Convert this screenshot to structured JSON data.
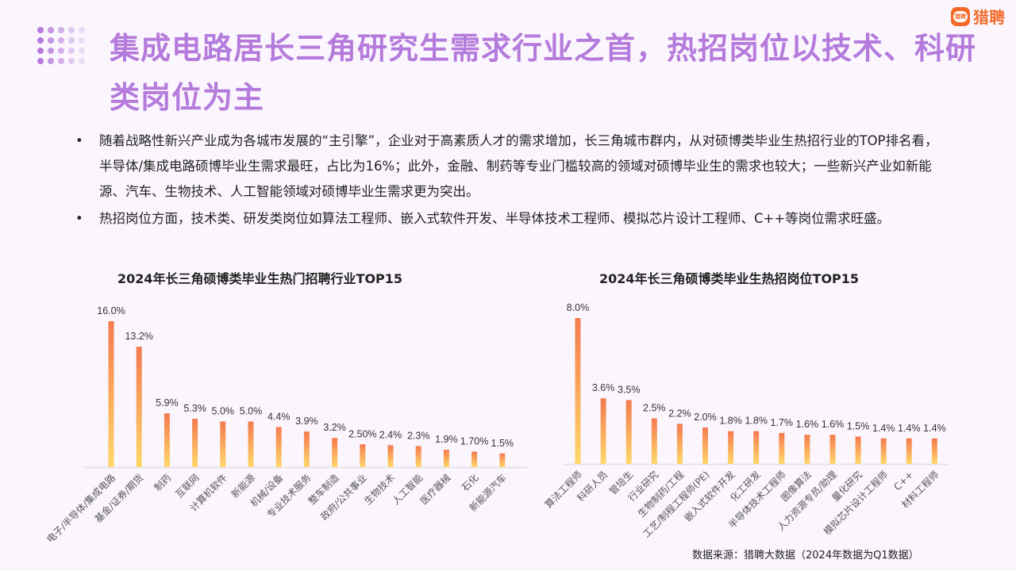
{
  "header": {
    "title": "集成电路居长三角研究生需求行业之首，热招岗位以技术、科研类岗位为主",
    "logo_text": "猎聘",
    "title_color": "#b57bdc"
  },
  "bullets": [
    "随着战略性新兴产业成为各城市发展的“主引擎”，企业对于高素质人才的需求增加，长三角城市群内，从对硕博类毕业生热招行业的TOP排名看，半导体/集成电路硕博毕业生需求最旺，占比为16%；此外，金融、制药等专业门槛较高的领域对硕博毕业生的需求也较大；一些新兴产业如新能源、汽车、生物技术、人工智能领域对硕博毕业生需求更为突出。",
    "热招岗位方面，技术类、研发类岗位如算法工程师、嵌入式软件开发、半导体技术工程师、模拟芯片设计工程师、C++等岗位需求旺盛。"
  ],
  "chart_data": [
    {
      "type": "bar",
      "title": "2024年长三角硕博类毕业生热门招聘行业TOP15",
      "categories": [
        "电子/半导体/集成电路",
        "基金/证券/期货",
        "制药",
        "互联网",
        "计算机软件",
        "新能源",
        "机械/设备",
        "专业技术服务",
        "整车制造",
        "政府/公共事业",
        "生物技术",
        "人工智能",
        "医疗器械",
        "石化",
        "新能源汽车"
      ],
      "values": [
        16.0,
        13.2,
        5.9,
        5.3,
        5.0,
        5.0,
        4.4,
        3.9,
        3.2,
        2.5,
        2.4,
        2.3,
        1.9,
        1.7,
        1.5
      ],
      "labels": [
        "16.0%",
        "13.2%",
        "5.9%",
        "5.3%",
        "5.0%",
        "5.0%",
        "4.4%",
        "3.9%",
        "3.2%",
        "2.50%",
        "2.4%",
        "2.3%",
        "1.9%",
        "1.70%",
        "1.5%"
      ],
      "unit": "%",
      "grid": false,
      "colors": {
        "top": "#f47a50",
        "bottom": "#ffd86a"
      }
    },
    {
      "type": "bar",
      "title": "2024年长三角硕博类毕业生热招岗位TOP15",
      "categories": [
        "算法工程师",
        "科研人员",
        "管培生",
        "行业研究",
        "生物制药/工程",
        "工艺/制程工程师(PE)",
        "嵌入式软件开发",
        "化工研发",
        "半导体技术工程师",
        "图像算法",
        "人力资源专员/助理",
        "量化研究",
        "模拟芯片设计工程师",
        "C++",
        "材料工程师"
      ],
      "values": [
        8.0,
        3.6,
        3.5,
        2.5,
        2.2,
        2.0,
        1.8,
        1.8,
        1.7,
        1.6,
        1.6,
        1.5,
        1.4,
        1.4,
        1.4
      ],
      "labels": [
        "8.0%",
        "3.6%",
        "3.5%",
        "2.5%",
        "2.2%",
        "2.0%",
        "1.8%",
        "1.8%",
        "1.7%",
        "1.6%",
        "1.6%",
        "1.5%",
        "1.4%",
        "1.4%",
        "1.4%"
      ],
      "unit": "%",
      "grid": false,
      "colors": {
        "top": "#f47a50",
        "bottom": "#ffd86a"
      }
    }
  ],
  "source": "数据来源：猎聘大数据（2024年数据为Q1数据）"
}
